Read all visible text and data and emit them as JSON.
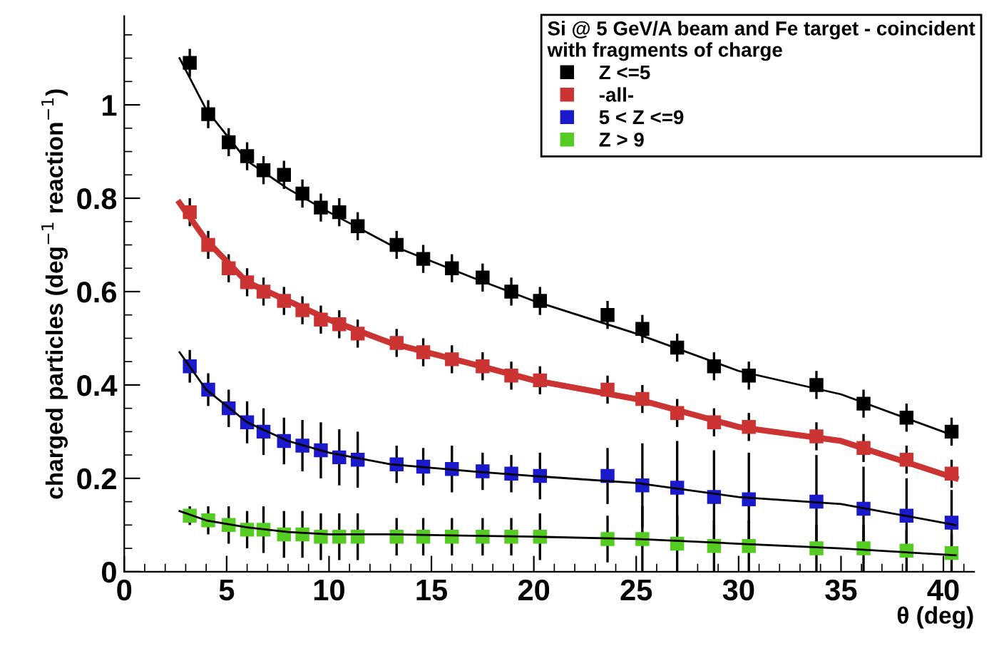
{
  "chart_data": {
    "type": "scatter",
    "xlabel": "θ (deg)",
    "ylabel": "charged particles (deg$^{−1}$ reaction$^{−1}$)",
    "legend_title": "Si @ 5 GeV/A beam and Fe target - coincident\nwith fragments of charge",
    "legend": "top right",
    "grid": false,
    "marker": "square",
    "x": [
      3.2,
      4.1,
      5.1,
      6.0,
      6.8,
      7.8,
      8.7,
      9.6,
      10.5,
      11.4,
      13.3,
      14.6,
      16.0,
      17.5,
      18.9,
      20.3,
      23.6,
      25.3,
      27.0,
      28.8,
      30.5,
      33.8,
      36.1,
      38.2,
      40.4
    ],
    "xlim": [
      0,
      41.5
    ],
    "xticks": [
      0,
      5,
      10,
      15,
      20,
      25,
      30,
      35,
      40
    ],
    "ylim": [
      0,
      1.19
    ],
    "yticks": [
      0,
      {
        "value": 0.2,
        "label": "0.2"
      },
      {
        "value": 0.4,
        "label": "0.4"
      },
      {
        "value": 0.6,
        "label": "0.6"
      },
      {
        "value": 0.8,
        "label": "0.8"
      },
      1
    ],
    "series": [
      {
        "name": "Z <=5",
        "color": "#000000",
        "values": [
          1.09,
          0.98,
          0.92,
          0.89,
          0.86,
          0.85,
          0.81,
          0.78,
          0.77,
          0.74,
          0.7,
          0.67,
          0.65,
          0.63,
          0.6,
          0.58,
          0.55,
          0.52,
          0.48,
          0.44,
          0.42,
          0.4,
          0.36,
          0.33,
          0.3
        ],
        "errors": [
          0.03,
          0.03,
          0.03,
          0.03,
          0.03,
          0.03,
          0.03,
          0.03,
          0.03,
          0.03,
          0.03,
          0.03,
          0.03,
          0.03,
          0.03,
          0.03,
          0.03,
          0.03,
          0.03,
          0.03,
          0.03,
          0.03,
          0.03,
          0.03,
          0.03
        ]
      },
      {
        "name": "-all-",
        "color": "#cc3333",
        "values": [
          0.77,
          0.7,
          0.65,
          0.62,
          0.6,
          0.58,
          0.56,
          0.54,
          0.53,
          0.51,
          0.49,
          0.47,
          0.455,
          0.44,
          0.42,
          0.41,
          0.39,
          0.37,
          0.34,
          0.32,
          0.31,
          0.29,
          0.265,
          0.24,
          0.21
        ],
        "errors": [
          0.03,
          0.03,
          0.03,
          0.03,
          0.03,
          0.03,
          0.03,
          0.03,
          0.03,
          0.03,
          0.03,
          0.03,
          0.03,
          0.03,
          0.03,
          0.03,
          0.03,
          0.03,
          0.03,
          0.03,
          0.03,
          0.03,
          0.03,
          0.03,
          0.03
        ]
      },
      {
        "name": "5 < Z <=9",
        "color": "#1a1acc",
        "values": [
          0.44,
          0.39,
          0.35,
          0.32,
          0.3,
          0.28,
          0.27,
          0.26,
          0.245,
          0.24,
          0.23,
          0.225,
          0.22,
          0.215,
          0.21,
          0.205,
          0.205,
          0.185,
          0.18,
          0.16,
          0.155,
          0.15,
          0.135,
          0.12,
          0.105
        ],
        "errors": [
          0.035,
          0.035,
          0.04,
          0.045,
          0.05,
          0.05,
          0.055,
          0.06,
          0.06,
          0.06,
          0.04,
          0.04,
          0.05,
          0.04,
          0.04,
          0.05,
          0.06,
          0.09,
          0.1,
          0.1,
          0.1,
          0.1,
          0.09,
          0.08,
          0.07
        ]
      },
      {
        "name": "Z > 9",
        "color": "#55cc22",
        "values": [
          0.12,
          0.11,
          0.1,
          0.09,
          0.09,
          0.08,
          0.08,
          0.075,
          0.075,
          0.075,
          0.075,
          0.075,
          0.075,
          0.075,
          0.075,
          0.075,
          0.07,
          0.07,
          0.06,
          0.055,
          0.055,
          0.05,
          0.05,
          0.045,
          0.04
        ],
        "errors": [
          0.02,
          0.03,
          0.04,
          0.04,
          0.05,
          0.05,
          0.05,
          0.05,
          0.05,
          0.05,
          0.04,
          0.04,
          0.04,
          0.04,
          0.04,
          0.05,
          0.05,
          0.07,
          0.06,
          0.055,
          0.055,
          0.05,
          0.05,
          0.045,
          0.04
        ]
      },
      {
        "type": "line",
        "marker": "none",
        "color": "#000000",
        "x": [
          2.7,
          4,
          6,
          8,
          10,
          13,
          17,
          20,
          25,
          30,
          35,
          40.6
        ],
        "values": [
          1.1,
          0.99,
          0.88,
          0.82,
          0.77,
          0.7,
          0.63,
          0.58,
          0.51,
          0.43,
          0.38,
          0.29
        ]
      },
      {
        "type": "line",
        "marker": "none",
        "color": "#cc3333",
        "x": [
          2.7,
          4,
          6,
          8,
          10,
          13,
          17,
          20,
          25,
          30,
          35,
          40.6
        ],
        "values": [
          0.79,
          0.71,
          0.62,
          0.58,
          0.54,
          0.49,
          0.445,
          0.41,
          0.37,
          0.31,
          0.28,
          0.2
        ]
      },
      {
        "type": "line",
        "marker": "none",
        "color": "#000000",
        "x": [
          2.7,
          4,
          6,
          8,
          10,
          13,
          17,
          20,
          25,
          30,
          35,
          40.6
        ],
        "values": [
          0.47,
          0.39,
          0.32,
          0.28,
          0.255,
          0.23,
          0.215,
          0.205,
          0.19,
          0.16,
          0.145,
          0.1
        ]
      },
      {
        "type": "line",
        "marker": "none",
        "color": "#000000",
        "x": [
          2.7,
          4,
          6,
          8,
          10,
          13,
          17,
          20,
          25,
          30,
          35,
          40.6
        ],
        "values": [
          0.13,
          0.11,
          0.095,
          0.085,
          0.08,
          0.08,
          0.077,
          0.075,
          0.07,
          0.06,
          0.05,
          0.035
        ]
      }
    ]
  }
}
